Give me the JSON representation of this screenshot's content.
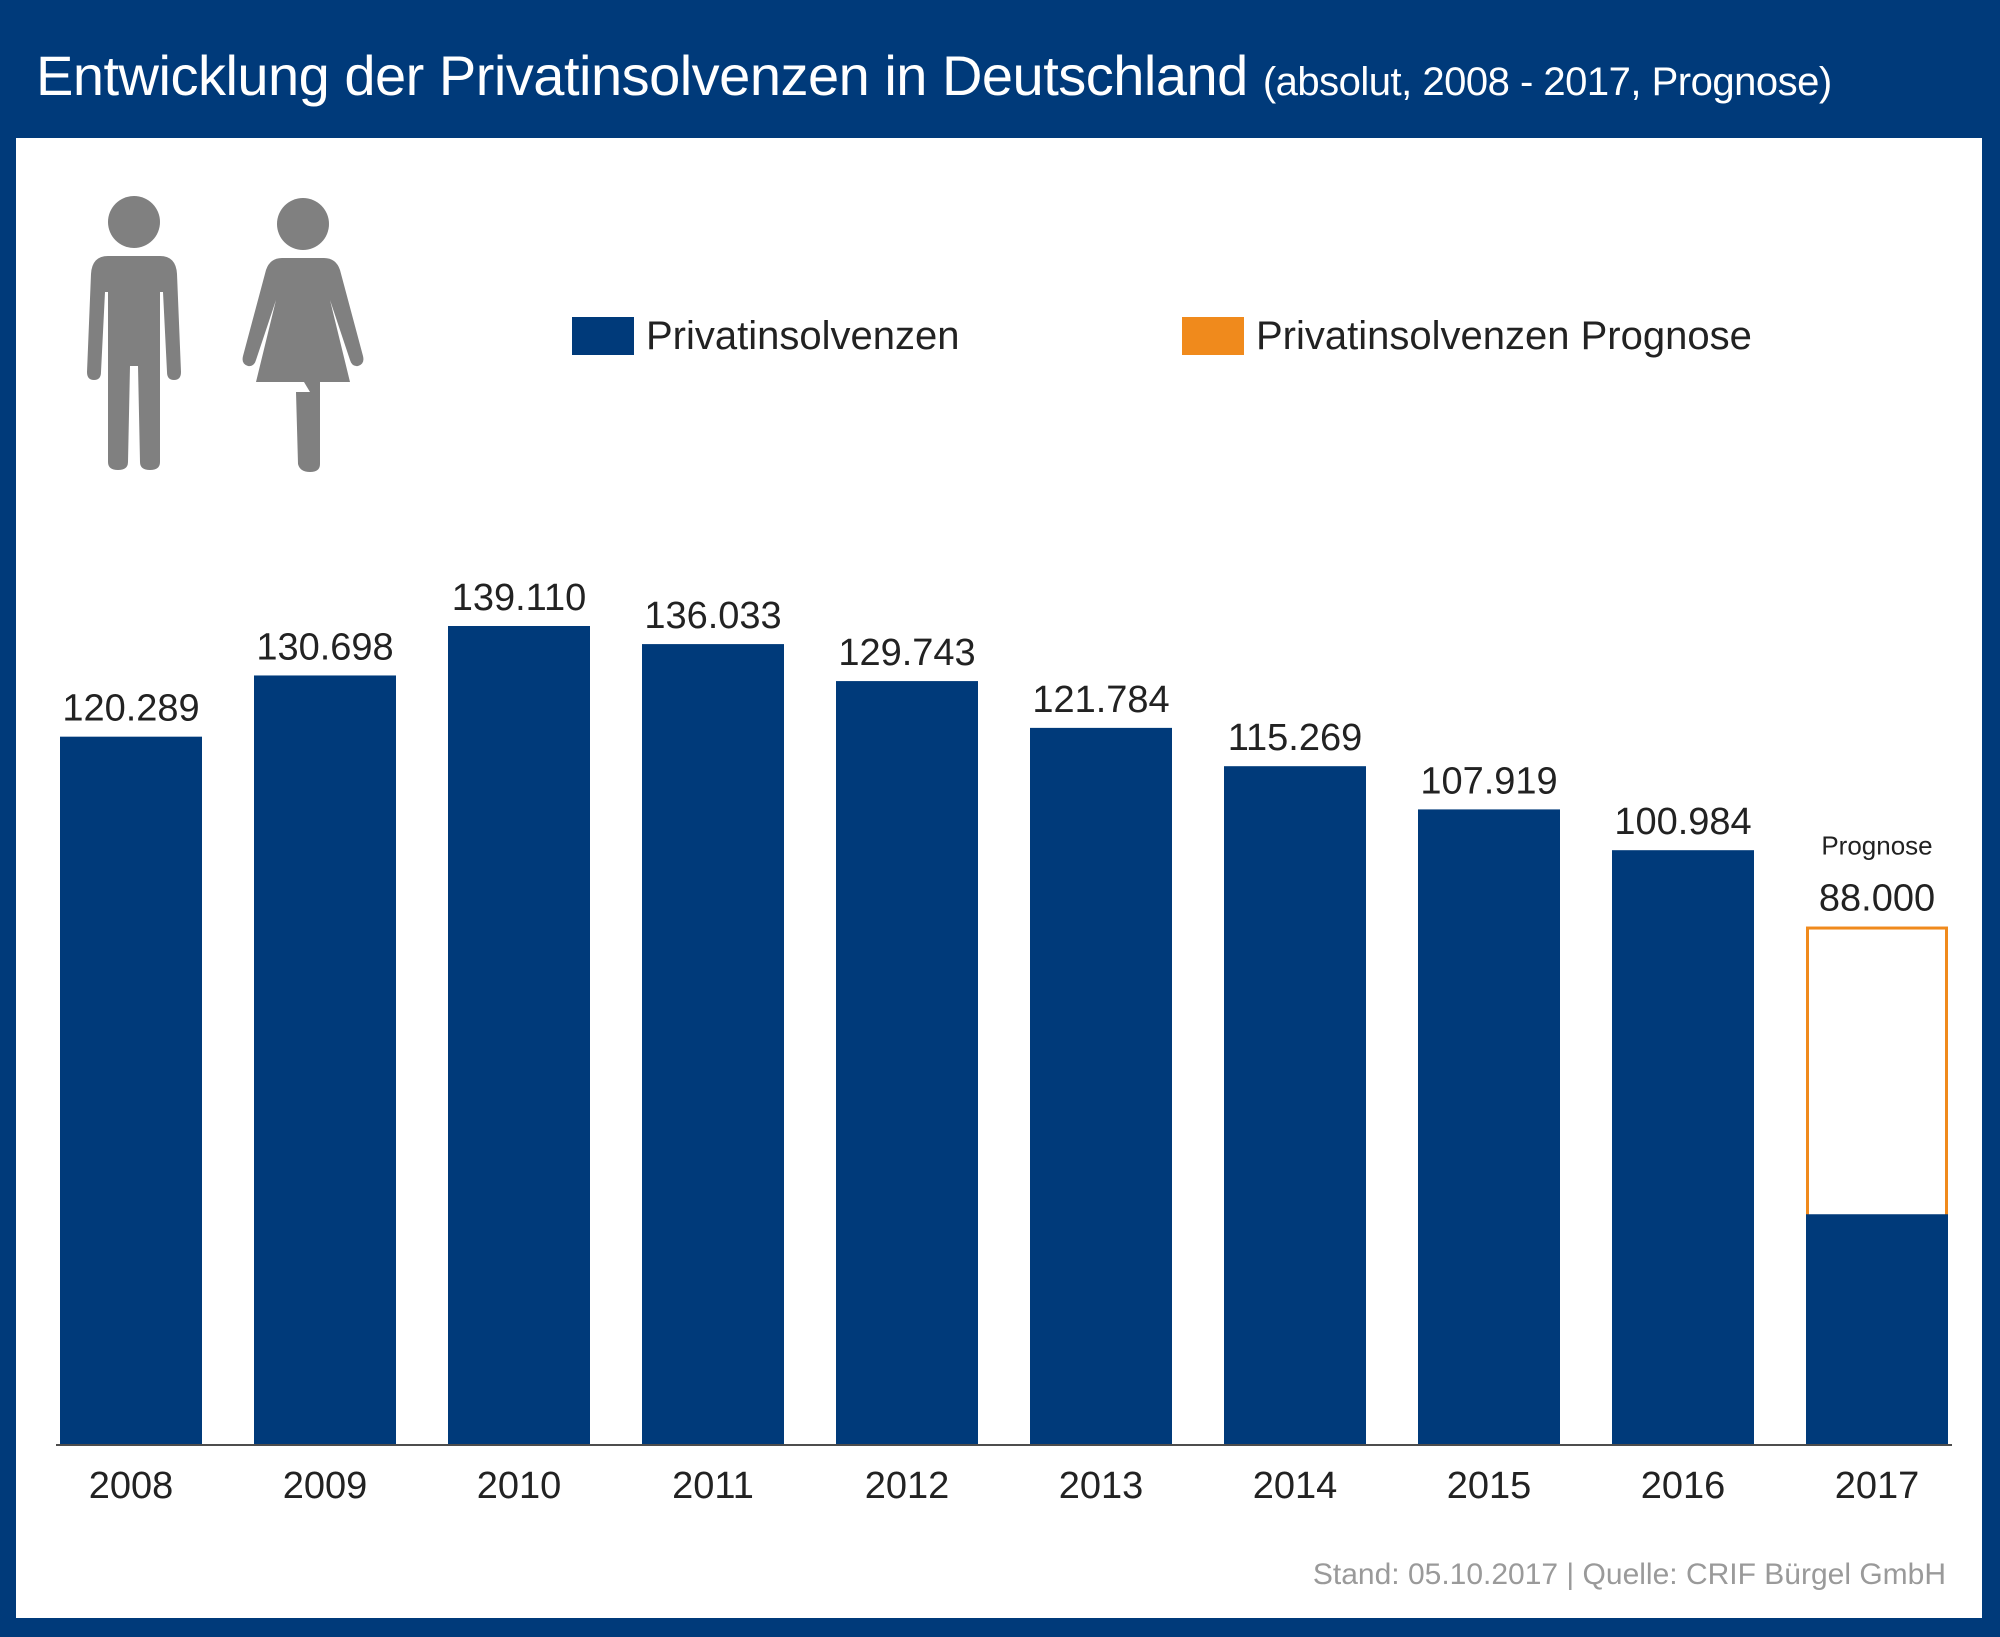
{
  "header": {
    "title": "Entwicklung der Privatinsolvenzen in Deutschland",
    "subtitle": "(absolut, 2008 - 2017, Prognose)"
  },
  "legend": {
    "actual_label": "Privatinsolvenzen",
    "forecast_label": "Privatinsolvenzen Prognose"
  },
  "footer": {
    "source": "Stand: 05.10.2017 | Quelle: CRIF Bürgel GmbH"
  },
  "colors": {
    "navy": "#003a7a",
    "orange": "#f08a1c",
    "icon_gray": "#808080",
    "text": "#222222"
  },
  "icons": [
    "man-icon",
    "woman-icon"
  ],
  "chart_data": {
    "type": "bar",
    "title": "Entwicklung der Privatinsolvenzen in Deutschland",
    "subtitle": "(absolut, 2008 - 2017, Prognose)",
    "categories": [
      "2008",
      "2009",
      "2010",
      "2011",
      "2012",
      "2013",
      "2014",
      "2015",
      "2016",
      "2017"
    ],
    "series": [
      {
        "name": "Privatinsolvenzen",
        "values": [
          120289,
          130698,
          139110,
          136033,
          129743,
          121784,
          115269,
          107919,
          100984,
          null
        ],
        "labels": [
          "120.289",
          "130.698",
          "139.110",
          "136.033",
          "129.743",
          "121.784",
          "115.269",
          "107.919",
          "100.984",
          ""
        ]
      },
      {
        "name": "Privatinsolvenzen Prognose",
        "values": [
          null,
          null,
          null,
          null,
          null,
          null,
          null,
          null,
          null,
          88000
        ],
        "labels": [
          "",
          "",
          "",
          "",
          "",
          "",
          "",
          "",
          "",
          "88.000"
        ],
        "note": "Prognose"
      }
    ],
    "ylim": [
      0,
      139110
    ],
    "xlabel": "",
    "ylabel": "",
    "grid": false,
    "legend_position": "top"
  }
}
